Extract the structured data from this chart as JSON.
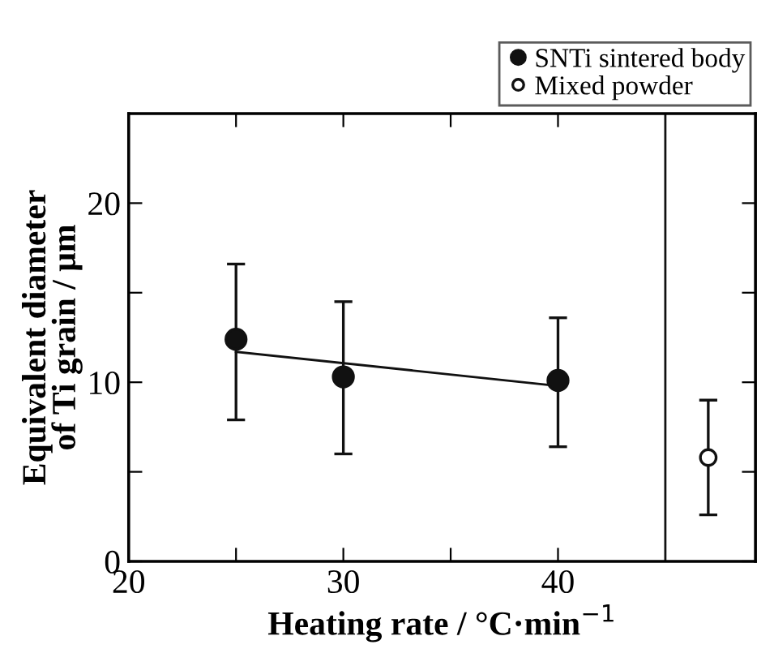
{
  "chart_data": {
    "type": "scatter",
    "xlabel": "Heating rate / °C·min$^{−1}$",
    "ylabel": "Equivalent diameter\nof Ti grain / μm",
    "xlim": [
      20,
      49.2
    ],
    "ylim": [
      0,
      25
    ],
    "xticks": [
      20,
      {
        "value": 25,
        "label": null
      },
      30,
      {
        "value": 35,
        "label": null
      },
      40
    ],
    "yticks": [
      0,
      {
        "value": 5,
        "label": null
      },
      10,
      {
        "value": 15,
        "label": null
      },
      20
    ],
    "grid": false,
    "legend": "top right",
    "series": [
      {
        "name": "SNTi sintered body",
        "color": "#111111",
        "marker": "circle",
        "x": [
          25,
          30,
          40
        ],
        "values": [
          12.4,
          10.3,
          10.1
        ],
        "errors": [
          [
            7.9,
            16.6
          ],
          [
            6.0,
            14.5
          ],
          [
            6.4,
            13.6
          ]
        ]
      },
      {
        "name": "Mixed powder",
        "color": "#ffffff",
        "marker": "circle",
        "x": [
          47
        ],
        "values": [
          5.8
        ],
        "errors": [
          [
            2.6,
            9.0
          ]
        ]
      },
      {
        "type": "line",
        "color": "#111111",
        "x": [
          25,
          40
        ],
        "values": [
          11.7,
          9.8
        ]
      }
    ],
    "ref_lines": [
      {
        "axis": "x",
        "value": 45,
        "color": "#111111"
      }
    ]
  }
}
